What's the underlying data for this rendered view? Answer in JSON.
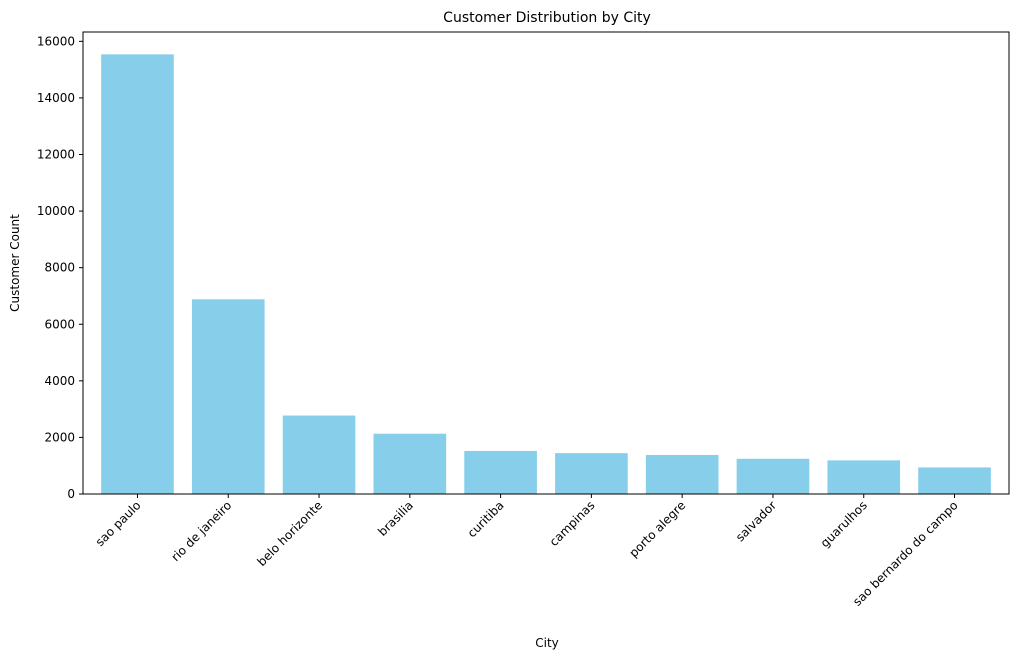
{
  "chart_data": {
    "type": "bar",
    "title": "Customer Distribution by City",
    "xlabel": "City",
    "ylabel": "Customer Count",
    "categories": [
      "sao paulo",
      "rio de janeiro",
      "belo horizonte",
      "brasilia",
      "curitiba",
      "campinas",
      "porto alegre",
      "salvador",
      "guarulhos",
      "sao bernardo do campo"
    ],
    "values": [
      15540,
      6882,
      2773,
      2131,
      1521,
      1444,
      1379,
      1245,
      1189,
      938
    ],
    "ylim": [
      0,
      16330
    ],
    "yticks": [
      0,
      2000,
      4000,
      6000,
      8000,
      10000,
      12000,
      14000,
      16000
    ],
    "bar_color": "#87ceeb",
    "grid": false,
    "legend": "none",
    "xtick_rotation": 45
  }
}
